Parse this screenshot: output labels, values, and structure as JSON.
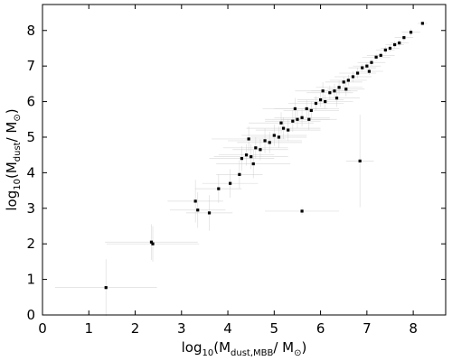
{
  "chart_data": {
    "type": "scatter",
    "xlabel_parts": [
      "log",
      "10",
      "(M",
      "dust,MBB",
      "/ M",
      "⊙",
      ")"
    ],
    "ylabel_parts": [
      "log",
      "10",
      "(M",
      "dust",
      "/ M",
      "⊙",
      ")"
    ],
    "xlim": [
      0,
      8.7
    ],
    "ylim": [
      0,
      8.73
    ],
    "xticks": [
      0,
      1,
      2,
      3,
      4,
      5,
      6,
      7,
      8
    ],
    "yticks": [
      0,
      1,
      2,
      3,
      4,
      5,
      6,
      7,
      8
    ],
    "color": "#000000",
    "errcolor": "#c8c8c8",
    "x": [
      4.3,
      4.4,
      4.5,
      4.6,
      4.7,
      4.8,
      4.9,
      5.0,
      5.1,
      5.2,
      5.3,
      5.4,
      5.5,
      5.6,
      5.7,
      5.8,
      5.9,
      6.0,
      6.1,
      6.2,
      6.3,
      6.4,
      6.5,
      6.6,
      6.7,
      6.8,
      6.9,
      7.0,
      7.1,
      7.2,
      7.3,
      7.4,
      7.5,
      7.6,
      7.7,
      7.8,
      7.95,
      8.2,
      4.55,
      5.15,
      5.75,
      6.35,
      6.05,
      4.45,
      5.45,
      6.55,
      7.05,
      1.37,
      2.35,
      2.38,
      3.3,
      3.35,
      3.6,
      3.8,
      4.05,
      4.25,
      5.6,
      6.85
    ],
    "y": [
      4.4,
      4.5,
      4.45,
      4.7,
      4.65,
      4.9,
      4.85,
      5.05,
      5.0,
      5.25,
      5.2,
      5.45,
      5.5,
      5.55,
      5.8,
      5.75,
      5.95,
      6.05,
      6.0,
      6.25,
      6.3,
      6.4,
      6.55,
      6.6,
      6.7,
      6.8,
      6.95,
      7.0,
      7.1,
      7.25,
      7.3,
      7.45,
      7.5,
      7.6,
      7.65,
      7.8,
      7.95,
      8.2,
      4.25,
      5.4,
      5.5,
      6.1,
      6.3,
      4.95,
      5.8,
      6.35,
      6.85,
      0.77,
      2.05,
      2.0,
      3.2,
      2.95,
      2.87,
      3.55,
      3.7,
      3.95,
      2.92,
      4.33
    ],
    "xerr": [
      0.7,
      0.6,
      0.8,
      0.7,
      0.6,
      0.8,
      0.7,
      0.7,
      0.6,
      0.8,
      0.7,
      0.6,
      0.7,
      0.6,
      0.7,
      0.6,
      0.6,
      0.5,
      0.6,
      0.5,
      0.5,
      0.5,
      0.4,
      0.4,
      0.4,
      0.4,
      0.3,
      0.3,
      0.3,
      0.3,
      0.3,
      0.2,
      0.2,
      0.2,
      0.2,
      0.2,
      0.2,
      0.1,
      0.8,
      0.7,
      0.6,
      0.5,
      0.6,
      0.8,
      0.7,
      0.4,
      0.3,
      1.1,
      1.0,
      1.0,
      0.6,
      0.6,
      0.5,
      0.5,
      0.6,
      0.5,
      0.8,
      0.3
    ],
    "yerr": [
      0.35,
      0.3,
      0.35,
      0.3,
      0.3,
      0.35,
      0.3,
      0.3,
      0.3,
      0.3,
      0.3,
      0.3,
      0.25,
      0.25,
      0.25,
      0.25,
      0.2,
      0.2,
      0.2,
      0.2,
      0.2,
      0.2,
      0.15,
      0.15,
      0.15,
      0.15,
      0.1,
      0.1,
      0.1,
      0.1,
      0.1,
      0.1,
      0.1,
      0.1,
      0.1,
      0.1,
      0.1,
      0.05,
      0.4,
      0.3,
      0.3,
      0.25,
      0.25,
      0.35,
      0.3,
      0.2,
      0.1,
      0.8,
      0.5,
      0.5,
      0.6,
      0.5,
      0.5,
      0.4,
      0.4,
      0.4,
      0.1,
      1.3
    ]
  }
}
